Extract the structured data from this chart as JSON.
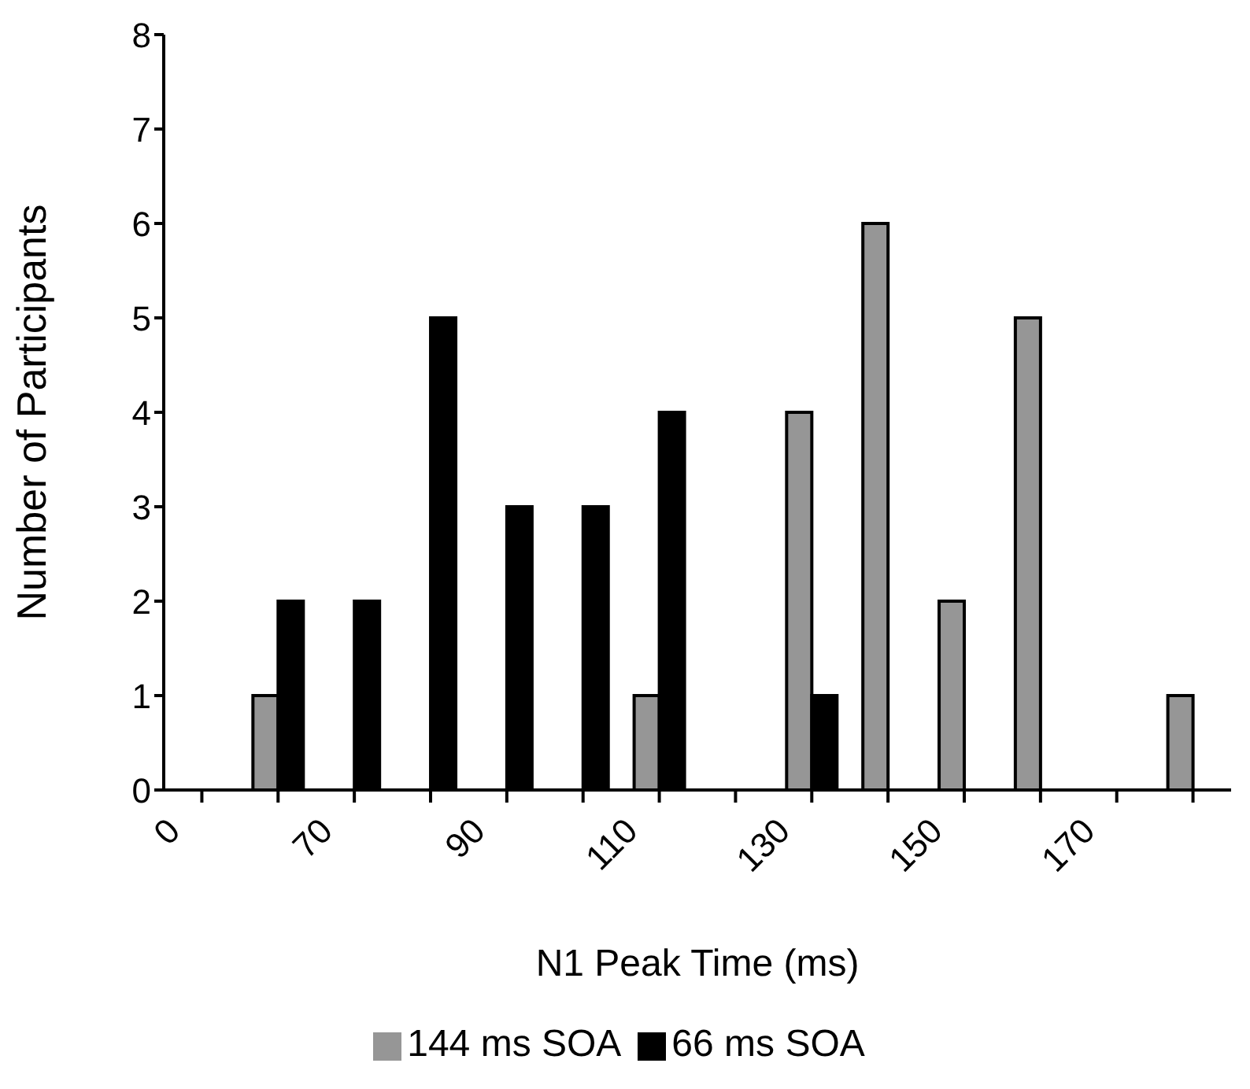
{
  "chart_data": {
    "type": "bar",
    "xlabel": "N1 Peak Time (ms)",
    "ylabel": "Number of Participants",
    "categories": [
      "0",
      null,
      "70",
      null,
      "90",
      null,
      "110",
      null,
      "130",
      null,
      "150",
      null,
      "170",
      null
    ],
    "series": [
      {
        "name": "144 ms SOA",
        "color": "#969696",
        "values": [
          0,
          1,
          0,
          0,
          0,
          0,
          1,
          0,
          4,
          6,
          2,
          5,
          0,
          1
        ]
      },
      {
        "name": "66 ms SOA",
        "color": "#000000",
        "values": [
          0,
          2,
          2,
          5,
          3,
          3,
          4,
          0,
          1,
          0,
          0,
          0,
          0,
          0
        ]
      }
    ],
    "ylim": [
      0,
      8
    ],
    "yticks": [
      0,
      1,
      2,
      3,
      4,
      5,
      6,
      7,
      8
    ],
    "grid": false,
    "legend": "bottom"
  }
}
